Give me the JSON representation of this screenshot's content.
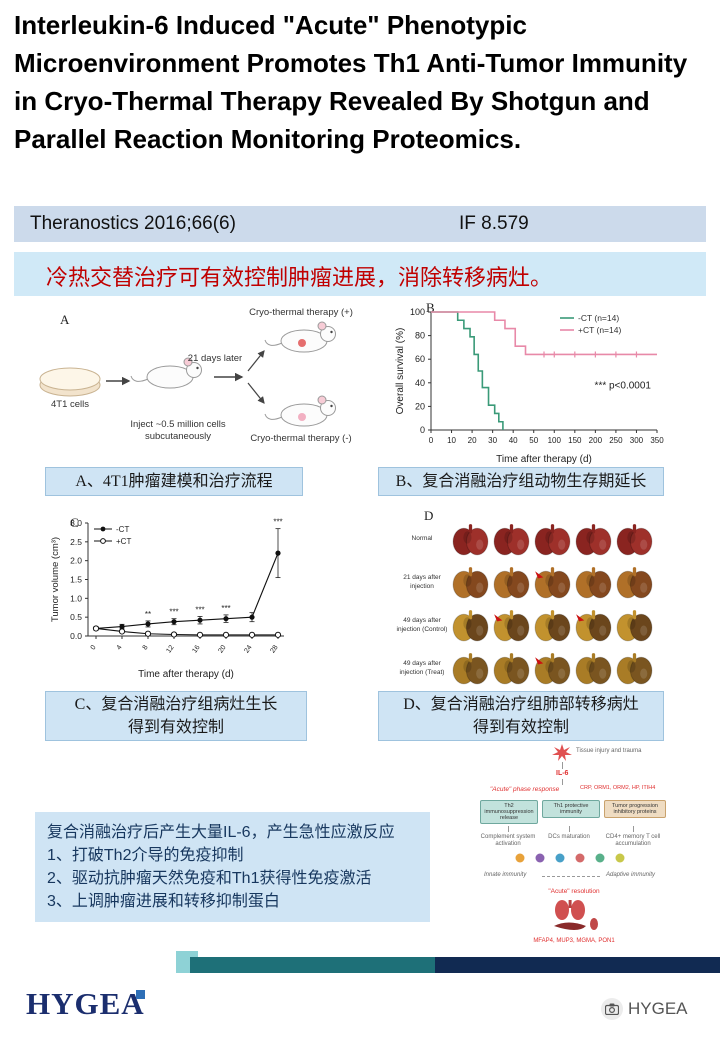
{
  "title": "Interleukin-6 Induced \"Acute\" Phenotypic Microenvironment Promotes Th1 Anti-Tumor Immunity in Cryo-Thermal Therapy Revealed By Shotgun and Parallel Reaction Monitoring Proteomics.",
  "journal_bar": {
    "citation": "Theranostics 2016;66(6)",
    "impact_factor": "IF 8.579"
  },
  "banner": {
    "text": "冷热交替治疗可有效控制肿瘤进展，消除转移病灶。",
    "text_color": "#c00000"
  },
  "panels": {
    "a": {
      "letter": "A",
      "cells_label": "4T1 cells",
      "inject_label": "Inject ~0.5 million cells subcutaneously",
      "days_label": "21 days later",
      "therapy_plus": "Cryo-thermal therapy (+)",
      "therapy_minus": "Cryo-thermal therapy (-)",
      "caption": "A、4T1肿瘤建模和治疗流程"
    },
    "b": {
      "letter": "B",
      "caption": "B、复合消融治疗组动物生存期延长"
    },
    "c": {
      "letter": "C",
      "caption_line1": "C、复合消融治疗组病灶生长",
      "caption_line2": "得到有效控制"
    },
    "d": {
      "letter": "D",
      "caption_line1": "D、复合消融治疗组肺部转移病灶",
      "caption_line2": "得到有效控制",
      "lungs_per_row": 5,
      "rows": [
        {
          "label": "Normal",
          "c1": "#8a2420",
          "c2": "#9e302a",
          "arrow_cells": []
        },
        {
          "label": "21 days after injection",
          "c1": "#b07028",
          "c2": "#84481e",
          "arrow_cells": [
            2
          ]
        },
        {
          "label": "49 days after injection (Control)",
          "c1": "#c2922e",
          "c2": "#6b461c",
          "arrow_cells": [
            1,
            3
          ]
        },
        {
          "label": "49 days after injection (Treat)",
          "c1": "#a97c26",
          "c2": "#7a5520",
          "arrow_cells": [
            2
          ]
        }
      ]
    }
  },
  "chart_data": [
    {
      "type": "line",
      "subtype": "kaplan-meier",
      "panel": "B",
      "xlabel": "Time after therapy (d)",
      "ylabel": "Overall survival (%)",
      "xticks": [
        0,
        10,
        20,
        30,
        40,
        50,
        100,
        150,
        200,
        250,
        300,
        350
      ],
      "yticks": [
        0,
        20,
        40,
        60,
        80,
        100
      ],
      "ylim": [
        0,
        100
      ],
      "annotation": "*** p<0.0001",
      "series": [
        {
          "name": "-CT (n=14)",
          "color": "#3a9a78",
          "points": [
            [
              0,
              100
            ],
            [
              10,
              100
            ],
            [
              13,
              93
            ],
            [
              16,
              86
            ],
            [
              19,
              79
            ],
            [
              21,
              64
            ],
            [
              23,
              50
            ],
            [
              25,
              36
            ],
            [
              28,
              21
            ],
            [
              31,
              14
            ],
            [
              33,
              7
            ],
            [
              35,
              0
            ]
          ]
        },
        {
          "name": "+CT (n=14)",
          "color": "#e889a8",
          "points": [
            [
              0,
              100
            ],
            [
              27,
              100
            ],
            [
              31,
              93
            ],
            [
              36,
              86
            ],
            [
              41,
              71
            ],
            [
              46,
              64
            ],
            [
              350,
              64
            ]
          ],
          "censors": [
            75,
            100,
            150,
            200,
            250,
            300
          ]
        }
      ]
    },
    {
      "type": "line",
      "panel": "C",
      "xlabel": "Time after therapy (d)",
      "ylabel": "Tumor volume (cm³)",
      "xticks": [
        0,
        4,
        8,
        12,
        16,
        20,
        24,
        28
      ],
      "yticks": [
        0.0,
        0.5,
        1.0,
        1.5,
        2.0,
        2.5,
        3.0
      ],
      "ylim": [
        0,
        3
      ],
      "significance": [
        "",
        "",
        "**",
        "***",
        "***",
        "***",
        "",
        "***"
      ],
      "series": [
        {
          "name": "-CT",
          "marker": "filled",
          "color": "#111111",
          "values": [
            0.2,
            0.25,
            0.32,
            0.38,
            0.42,
            0.46,
            0.5,
            2.2
          ],
          "err": [
            0.05,
            0.06,
            0.08,
            0.08,
            0.1,
            0.1,
            0.12,
            0.65
          ]
        },
        {
          "name": "+CT",
          "marker": "open",
          "color": "#111111",
          "values": [
            0.2,
            0.12,
            0.06,
            0.04,
            0.03,
            0.03,
            0.03,
            0.03
          ],
          "err": [
            0.04,
            0.03,
            0.02,
            0.02,
            0.02,
            0.02,
            0.02,
            0.02
          ]
        }
      ]
    }
  ],
  "summary_box": {
    "lines": [
      "复合消融治疗后产生大量IL-6，产生急性应激反应",
      "1、打破Th2介导的免疫抑制",
      "2、驱动抗肿瘤天然免疫和Th1获得性免疫激活",
      "3、上调肿瘤进展和转移抑制蛋白"
    ]
  },
  "pathway": {
    "tissue_label": "Tissue injury and trauma",
    "il6": "IL-6",
    "acute_phase": "\"Acute\" phase response",
    "acute_proteins": "CRP, ORM1, ORM2, HP, ITIH4",
    "box_th2": "Th2 immunosuppression release",
    "box_th1": "Th1 protective immunity",
    "box_tumor": "Tumor progression inhibitory proteins",
    "complement": "Complement system activation",
    "dc": "DCs maturation",
    "cd4": "CD4+ memory T cell accumulation",
    "innate": "Innate immunity",
    "adaptive": "Adaptive immunity",
    "resolution": "\"Acute\" resolution",
    "organ_proteins": "MFAP4, MUP3, MGMA, PON1"
  },
  "footer": {
    "logo_text": "HYGEA",
    "watermark_text": "HYGEA"
  }
}
